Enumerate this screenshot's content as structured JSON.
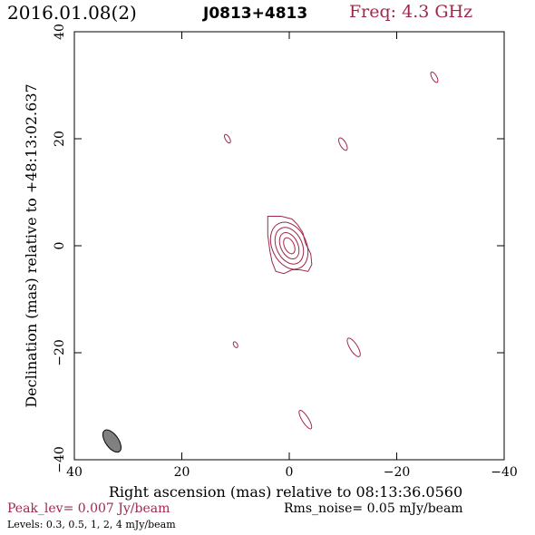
{
  "header": {
    "date": "2016.01.08(2)",
    "source": "J0813+4813",
    "frequency": "Freq: 4.3 GHz"
  },
  "chart_data": {
    "type": "contour",
    "xlabel": "Right ascension (mas) relative to 08:13:36.0560",
    "ylabel": "Declination (mas) relative to +48:13:02.637",
    "xlim": [
      40,
      -40
    ],
    "ylim": [
      -40,
      40
    ],
    "xticks": [
      40,
      20,
      0,
      -20,
      -40
    ],
    "yticks": [
      -40,
      -20,
      0,
      20,
      40
    ],
    "xtick_labels": [
      "40",
      "20",
      "0",
      "−20",
      "−40"
    ],
    "ytick_labels": [
      "−40",
      "−20",
      "0",
      "20",
      "40"
    ],
    "contour_color": "#a0284a",
    "core": {
      "x": 0,
      "y": 0,
      "outer_shape": [
        [
          4.0,
          5.5
        ],
        [
          3.0,
          5.5
        ],
        [
          1.5,
          5.5
        ],
        [
          -0.5,
          5.0
        ],
        [
          -1.5,
          4.0
        ],
        [
          -2.5,
          2.5
        ],
        [
          -3.0,
          0.5
        ],
        [
          -4.0,
          -1.5
        ],
        [
          -4.2,
          -3.5
        ],
        [
          -3.5,
          -4.8
        ],
        [
          -2.0,
          -4.5
        ],
        [
          -0.5,
          -4.5
        ],
        [
          1.0,
          -5.2
        ],
        [
          2.5,
          -4.8
        ],
        [
          3.2,
          -3.0
        ],
        [
          3.6,
          -1.0
        ],
        [
          4.0,
          2.0
        ]
      ],
      "inner_ellipses": [
        {
          "rx": 3.2,
          "ry": 4.6,
          "angle": -25
        },
        {
          "rx": 2.4,
          "ry": 3.6,
          "angle": -25
        },
        {
          "rx": 1.6,
          "ry": 2.6,
          "angle": -25
        },
        {
          "rx": 0.9,
          "ry": 1.6,
          "angle": -25
        }
      ]
    },
    "components": [
      {
        "x": -27,
        "y": 31.5,
        "rx": 0.45,
        "ry": 1.1,
        "angle": -30
      },
      {
        "x": 11.5,
        "y": 20,
        "rx": 0.4,
        "ry": 0.9,
        "angle": -30
      },
      {
        "x": -10,
        "y": 19,
        "rx": 0.55,
        "ry": 1.3,
        "angle": -30
      },
      {
        "x": 10,
        "y": -18.5,
        "rx": 0.35,
        "ry": 0.6,
        "angle": -30
      },
      {
        "x": -12,
        "y": -19,
        "rx": 0.7,
        "ry": 2.0,
        "angle": -32
      },
      {
        "x": -3,
        "y": -32.5,
        "rx": 0.6,
        "ry": 2.0,
        "angle": -32
      }
    ],
    "beam": {
      "x": 33,
      "y": -36.5,
      "rx": 1.2,
      "ry": 2.4,
      "angle": -35,
      "fill": "#808080"
    }
  },
  "footer": {
    "peak": "Peak_lev=  0.007 Jy/beam",
    "rms": "Rms_noise= 0.05 mJy/beam",
    "levels": "Levels: 0.3,  0.5,    1,    2,    4 mJy/beam"
  }
}
